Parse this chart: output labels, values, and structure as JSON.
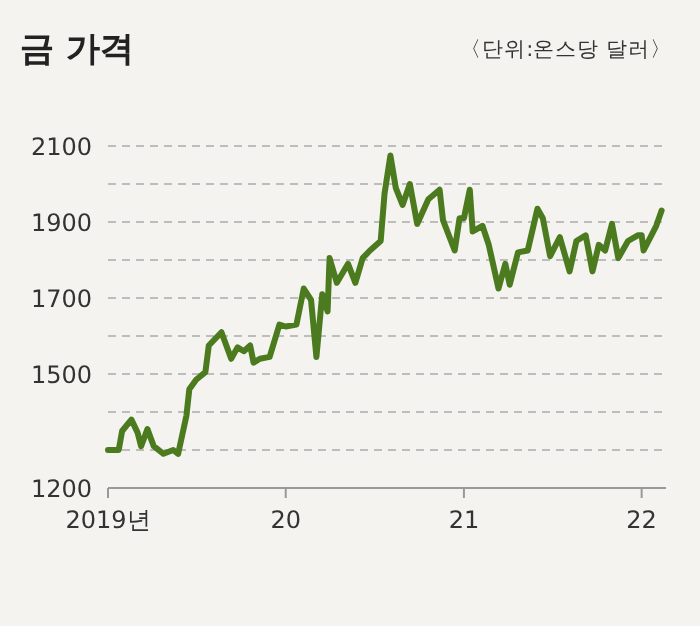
{
  "chart_data": {
    "type": "line",
    "title": "금 가격",
    "subtitle": "〈단위:온스당 달러〉",
    "x": [
      "2019-01-01",
      "2019-01-23",
      "2019-01-30",
      "2019-02-18",
      "2019-03-03",
      "2019-03-10",
      "2019-03-23",
      "2019-04-05",
      "2019-04-25",
      "2019-05-15",
      "2019-05-25",
      "2019-06-11",
      "2019-06-17",
      "2019-07-01",
      "2019-07-20",
      "2019-07-27",
      "2019-08-22",
      "2019-09-11",
      "2019-09-24",
      "2019-10-07",
      "2019-10-20",
      "2019-10-27",
      "2019-11-09",
      "2019-11-29",
      "2019-12-19",
      "2020-01-01",
      "2020-01-23",
      "2020-02-07",
      "2020-02-22",
      "2020-03-04",
      "2020-03-16",
      "2020-03-27",
      "2020-03-31",
      "2020-04-15",
      "2020-05-08",
      "2020-05-23",
      "2020-06-07",
      "2020-06-22",
      "2020-07-14",
      "2020-07-22",
      "2020-08-03",
      "2020-08-14",
      "2020-08-28",
      "2020-09-12",
      "2020-09-27",
      "2020-10-20",
      "2020-11-12",
      "2020-11-19",
      "2020-12-13",
      "2020-12-23",
      "2021-01-01",
      "2021-01-13",
      "2021-01-19",
      "2021-02-08",
      "2021-02-21",
      "2021-03-13",
      "2021-03-27",
      "2021-04-05",
      "2021-04-22",
      "2021-05-12",
      "2021-06-01",
      "2021-06-12",
      "2021-06-27",
      "2021-07-17",
      "2021-08-06",
      "2021-08-20",
      "2021-09-08",
      "2021-09-22",
      "2021-10-05",
      "2021-10-18",
      "2021-11-01",
      "2021-11-14",
      "2021-12-04",
      "2021-12-24",
      "2022-01-01",
      "2022-01-05",
      "2022-01-31",
      "2022-02-11"
    ],
    "series": [
      {
        "color": "#4b7b1e",
        "values": [
          1300,
          1300,
          1350,
          1380,
          1345,
          1310,
          1355,
          1310,
          1290,
          1300,
          1290,
          1390,
          1460,
          1485,
          1505,
          1575,
          1610,
          1540,
          1570,
          1560,
          1575,
          1530,
          1540,
          1545,
          1630,
          1625,
          1630,
          1725,
          1695,
          1545,
          1710,
          1665,
          1805,
          1740,
          1790,
          1740,
          1805,
          1825,
          1850,
          1975,
          2075,
          1990,
          1945,
          2000,
          1895,
          1960,
          1985,
          1905,
          1825,
          1910,
          1910,
          1985,
          1875,
          1890,
          1840,
          1725,
          1790,
          1735,
          1820,
          1825,
          1935,
          1910,
          1810,
          1860,
          1770,
          1850,
          1865,
          1770,
          1840,
          1825,
          1895,
          1805,
          1850,
          1865,
          1865,
          1825,
          1890,
          1930
        ]
      }
    ],
    "xlim": [
      "2019-01-01",
      "2022-02-20"
    ],
    "xticks": [
      {
        "value": "2019-01-01",
        "label": "2019년"
      },
      {
        "value": "2020-01-01",
        "label": "20"
      },
      {
        "value": "2021-01-01",
        "label": "21"
      },
      {
        "value": "2022-01-01",
        "label": "22"
      }
    ],
    "ylim": [
      1200,
      2100
    ],
    "yticks": [
      2100,
      {
        "value": 2000,
        "label": null
      },
      1900,
      {
        "value": 1800,
        "label": null
      },
      1700,
      {
        "value": 1600,
        "label": null
      },
      1500,
      {
        "value": 1400,
        "label": null
      },
      {
        "value": 1300,
        "label": null
      },
      1200
    ],
    "grid": "y",
    "line_style": "solid"
  }
}
